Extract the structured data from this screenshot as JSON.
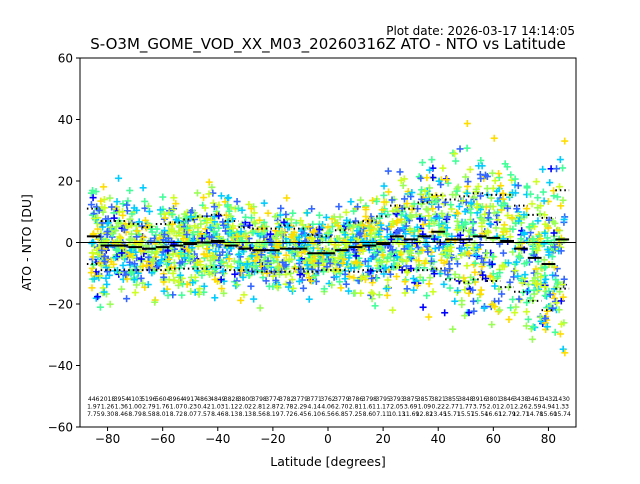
{
  "plot_date": "Plot date: 2026-03-17 14:14:05",
  "chart_data": {
    "type": "scatter",
    "title": "S-O3M_GOME_VOD_XX_M03_20260316Z ATO - NTO vs Latitude",
    "xlabel": "Latitude [degrees]",
    "ylabel": "ATO - NTO [DU]",
    "xlim": [
      -90,
      90
    ],
    "ylim": [
      -60,
      60
    ],
    "xticks": [
      -80,
      -60,
      -40,
      -20,
      0,
      20,
      40,
      60,
      80
    ],
    "yticks": [
      -60,
      -40,
      -20,
      0,
      20,
      40,
      60
    ],
    "grid": false,
    "zero_line": true,
    "bin_lat": [
      -85,
      -80,
      -75,
      -70,
      -65,
      -60,
      -55,
      -50,
      -45,
      -40,
      -35,
      -30,
      -25,
      -20,
      -15,
      -10,
      -5,
      0,
      5,
      10,
      15,
      20,
      25,
      30,
      35,
      40,
      45,
      50,
      55,
      60,
      65,
      70,
      75,
      80,
      85
    ],
    "bin_mean": [
      2,
      -1,
      -1,
      -1.5,
      -2,
      -1.5,
      -1,
      -0.5,
      0,
      0.5,
      -1,
      -2,
      -2.5,
      -2.5,
      -2,
      -2,
      -3.5,
      -3.5,
      -2.5,
      -1.5,
      -1,
      -0.5,
      2,
      1,
      2,
      3.5,
      1,
      1,
      2,
      1.5,
      0.5,
      -2,
      -5,
      -7,
      1
    ],
    "bin_std": [
      9,
      8,
      8,
      7.5,
      7,
      7.5,
      7.5,
      8,
      8.5,
      8.5,
      8,
      7,
      7,
      7,
      7.5,
      6.5,
      6,
      5.5,
      6.5,
      8,
      8,
      9,
      10,
      10,
      11,
      12,
      13,
      14,
      14,
      14,
      15,
      14,
      14,
      15,
      16
    ],
    "table_rows": [
      [
        "446",
        "2018",
        "3954",
        "4103",
        "5196",
        "5604",
        "3964",
        "4917",
        "4863",
        "4849",
        "3828",
        "3800",
        "3798",
        "3774",
        "3782",
        "3779",
        "3771",
        "3762",
        "3779",
        "3786",
        "3798",
        "3795",
        "3793",
        "3875",
        "3857",
        "3821",
        "3855",
        "3848",
        "3916",
        "3801",
        "3846",
        "3438",
        "3461",
        "3432",
        "1430"
      ],
      [
        "1.97",
        "1.26",
        "1.36",
        "1.00",
        "2.79",
        "1.76",
        "1.07",
        "0.23",
        "0.42",
        "1.03",
        "1.12",
        "2.02",
        "2.81",
        "2.87",
        "2.78",
        "2.29",
        "4.14",
        "4.06",
        "2.70",
        "2.81",
        "1.61",
        "1.17",
        "2.05",
        "3.69",
        "1.09",
        "0.22",
        "2.77",
        "1.77",
        "3.75",
        "2.01",
        "2.01",
        "2.26",
        "2.59",
        "4.94",
        "1.33"
      ],
      [
        "7.75",
        "9.30",
        "8.46",
        "8.79",
        "8.58",
        "8.01",
        "8.72",
        "8.07",
        "7.57",
        "8.46",
        "8.13",
        "8.13",
        "8.56",
        "8.19",
        "7.72",
        "6.45",
        "6.10",
        "6.56",
        "6.85",
        "7.25",
        "8.60",
        "7.11",
        "10.13",
        "11.69",
        "12.82",
        "13.45",
        "15.71",
        "15.57",
        "15.54",
        "16.61",
        "12.79",
        "12.71",
        "14.78",
        "15.60",
        "15.74"
      ]
    ],
    "series": [
      {
        "name": "",
        "color": "#3366ff",
        "mean": -1,
        "spread": 12
      },
      {
        "name": "",
        "color": "#00ccff",
        "mean": 0,
        "spread": 13
      },
      {
        "name": "",
        "color": "#44ff99",
        "mean": -1,
        "spread": 11
      },
      {
        "name": "",
        "color": "#99ff55",
        "mean": 0,
        "spread": 12
      },
      {
        "name": "",
        "color": "#ccff22",
        "mean": 1,
        "spread": 14
      },
      {
        "name": "",
        "color": "#ffdd00",
        "mean": 0,
        "spread": 13
      },
      {
        "name": "",
        "color": "#0000ff",
        "mean": -2,
        "spread": 10
      }
    ]
  }
}
